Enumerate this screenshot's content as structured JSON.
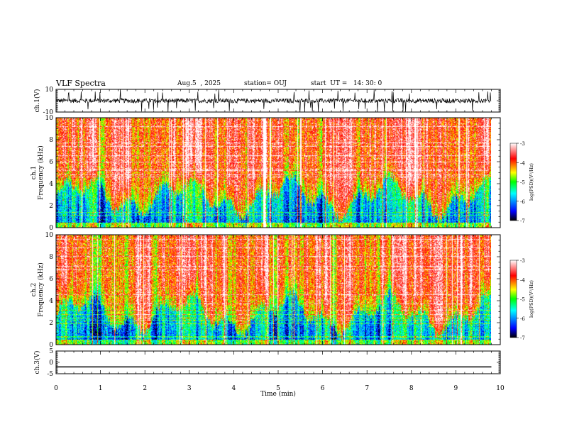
{
  "header": {
    "title": "VLF Spectra",
    "date": "Aug.5  , 2025",
    "station": "station= OUJ",
    "start": "start  UT =   14: 30: 0"
  },
  "chart_data": [
    {
      "type": "line",
      "ylabel": "ch.1(V)",
      "ylim": [
        -10,
        10
      ],
      "ytick_labels": [
        "10",
        "-10"
      ],
      "description": "noisy waveform around zero with frequent spikes"
    },
    {
      "type": "heatmap",
      "ylabel": "ch.1\nFrequency (kHz)",
      "ylim": [
        0,
        10
      ],
      "ytick_labels": [
        "0",
        "2",
        "4",
        "6",
        "8",
        "10"
      ],
      "colorbar_label": "log(PSD)(V²/Hz)",
      "colorbar_range": [
        -7,
        -3
      ],
      "colorbar_ticks": [
        "-3",
        "-4",
        "-5",
        "-6",
        "-7"
      ]
    },
    {
      "type": "heatmap",
      "ylabel": "ch.2\nFrequency (kHz)",
      "ylim": [
        0,
        10
      ],
      "ytick_labels": [
        "0",
        "2",
        "4",
        "6",
        "8",
        "10"
      ],
      "colorbar_label": "log(PSD)(V²/Hz)",
      "colorbar_range": [
        -7,
        -3
      ],
      "colorbar_ticks": [
        "-3",
        "-4",
        "-5",
        "-6",
        "-7"
      ]
    },
    {
      "type": "line",
      "ylabel": "ch.3(V)",
      "ylim": [
        -5,
        5
      ],
      "ytick_labels": [
        "5",
        "0",
        "-5"
      ],
      "series": [
        {
          "x": [
            0,
            9.8
          ],
          "y": [
            -2,
            -2
          ]
        }
      ]
    }
  ],
  "x_axis": {
    "label": "Time (min)",
    "range": [
      0,
      10
    ],
    "tick_labels": [
      "0",
      "1",
      "2",
      "3",
      "4",
      "5",
      "6",
      "7",
      "8",
      "9",
      "10"
    ],
    "data_end": 9.8
  },
  "colors": {
    "scale": [
      "#000000",
      "#0000ff",
      "#00ffff",
      "#00ff00",
      "#ffff00",
      "#ff0000",
      "#ffffff"
    ]
  }
}
